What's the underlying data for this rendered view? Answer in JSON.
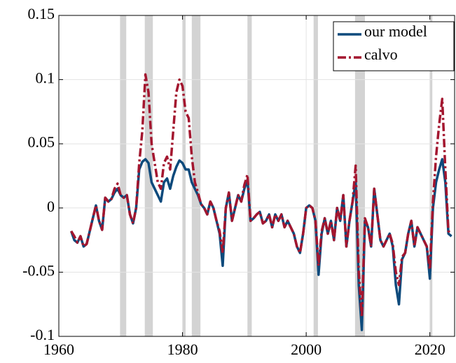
{
  "chart_data": {
    "type": "line",
    "x": [
      1962,
      1962.5,
      1963,
      1963.5,
      1964,
      1964.5,
      1965,
      1965.5,
      1966,
      1966.5,
      1967,
      1967.5,
      1968,
      1968.5,
      1969,
      1969.5,
      1970,
      1970.5,
      1971,
      1971.5,
      1972,
      1972.5,
      1973,
      1973.5,
      1974,
      1974.5,
      1975,
      1975.5,
      1976,
      1976.5,
      1977,
      1977.5,
      1978,
      1978.5,
      1979,
      1979.5,
      1980,
      1980.5,
      1981,
      1981.5,
      1982,
      1982.5,
      1983,
      1983.5,
      1984,
      1984.5,
      1985,
      1985.5,
      1986,
      1986.5,
      1987,
      1987.5,
      1988,
      1988.5,
      1989,
      1989.5,
      1990,
      1990.5,
      1991,
      1991.5,
      1992,
      1992.5,
      1993,
      1993.5,
      1994,
      1994.5,
      1995,
      1995.5,
      1996,
      1996.5,
      1997,
      1997.5,
      1998,
      1998.5,
      1999,
      1999.5,
      2000,
      2000.5,
      2001,
      2001.5,
      2002,
      2002.5,
      2003,
      2003.5,
      2004,
      2004.5,
      2005,
      2005.5,
      2006,
      2006.5,
      2007,
      2007.5,
      2008,
      2008.5,
      2009,
      2009.5,
      2010,
      2010.5,
      2011,
      2011.5,
      2012,
      2012.5,
      2013,
      2013.5,
      2014,
      2014.5,
      2015,
      2015.5,
      2016,
      2016.5,
      2017,
      2017.5,
      2018,
      2018.5,
      2019,
      2019.5,
      2020,
      2020.5,
      2021,
      2021.5,
      2022,
      2022.5,
      2023,
      2023.5
    ],
    "series": [
      {
        "name": "our model",
        "color": "#0d4a7c",
        "dash": "solid",
        "values": [
          -0.018,
          -0.025,
          -0.027,
          -0.022,
          -0.03,
          -0.028,
          -0.018,
          -0.008,
          0.002,
          -0.01,
          -0.017,
          0.008,
          0.005,
          0.007,
          0.012,
          0.015,
          0.01,
          0.008,
          0.01,
          -0.005,
          -0.012,
          0.0,
          0.03,
          0.036,
          0.038,
          0.035,
          0.02,
          0.015,
          0.01,
          0.005,
          0.02,
          0.023,
          0.015,
          0.025,
          0.032,
          0.037,
          0.035,
          0.03,
          0.03,
          0.02,
          0.015,
          0.01,
          0.003,
          0.0,
          -0.005,
          0.005,
          0.0,
          -0.01,
          -0.02,
          -0.045,
          0.0,
          0.012,
          -0.01,
          0.0,
          0.01,
          0.005,
          0.015,
          0.022,
          -0.01,
          -0.008,
          -0.005,
          -0.003,
          -0.012,
          -0.01,
          -0.005,
          -0.015,
          -0.005,
          -0.01,
          -0.005,
          -0.015,
          -0.01,
          -0.015,
          -0.02,
          -0.03,
          -0.035,
          -0.02,
          0.0,
          0.002,
          0.0,
          -0.01,
          -0.052,
          -0.02,
          -0.008,
          -0.02,
          -0.01,
          -0.025,
          0.0,
          -0.01,
          0.01,
          -0.03,
          -0.01,
          0.005,
          0.02,
          -0.06,
          -0.095,
          -0.01,
          -0.015,
          -0.03,
          0.015,
          -0.005,
          -0.025,
          -0.03,
          -0.025,
          -0.02,
          -0.03,
          -0.06,
          -0.075,
          -0.04,
          -0.035,
          -0.02,
          -0.01,
          -0.03,
          -0.015,
          -0.02,
          -0.025,
          -0.03,
          -0.055,
          0.0,
          0.02,
          0.03,
          0.038,
          0.02,
          -0.02,
          -0.022
        ]
      },
      {
        "name": "calvo",
        "color": "#a3162f",
        "dash": "dashdot",
        "values": [
          -0.018,
          -0.022,
          -0.027,
          -0.022,
          -0.03,
          -0.028,
          -0.018,
          -0.008,
          0.002,
          -0.01,
          -0.017,
          0.008,
          0.005,
          0.007,
          0.015,
          0.019,
          0.01,
          0.008,
          0.01,
          -0.005,
          -0.012,
          0.0,
          0.035,
          0.06,
          0.104,
          0.09,
          0.05,
          0.035,
          0.02,
          0.015,
          0.035,
          0.04,
          0.03,
          0.06,
          0.09,
          0.1,
          0.095,
          0.075,
          0.07,
          0.04,
          0.02,
          0.012,
          0.003,
          0.0,
          -0.005,
          0.005,
          0.0,
          -0.01,
          -0.018,
          -0.035,
          0.0,
          0.012,
          -0.01,
          0.0,
          0.01,
          0.005,
          0.018,
          0.026,
          -0.01,
          -0.008,
          -0.005,
          -0.003,
          -0.012,
          -0.01,
          -0.005,
          -0.015,
          -0.005,
          -0.01,
          -0.005,
          -0.015,
          -0.01,
          -0.015,
          -0.02,
          -0.03,
          -0.035,
          -0.02,
          0.0,
          0.002,
          0.0,
          -0.01,
          -0.045,
          -0.018,
          -0.008,
          -0.02,
          -0.01,
          -0.025,
          0.0,
          -0.01,
          0.01,
          -0.03,
          -0.01,
          0.005,
          0.033,
          -0.05,
          -0.085,
          -0.008,
          -0.015,
          -0.03,
          0.015,
          -0.005,
          -0.025,
          -0.03,
          -0.025,
          -0.02,
          -0.028,
          -0.05,
          -0.06,
          -0.038,
          -0.035,
          -0.02,
          -0.01,
          -0.03,
          -0.015,
          -0.02,
          -0.025,
          -0.03,
          -0.048,
          0.005,
          0.04,
          0.065,
          0.085,
          0.03,
          -0.018,
          -0.02
        ]
      }
    ],
    "recessions": [
      [
        1969.9,
        1970.9
      ],
      [
        1973.9,
        1975.2
      ],
      [
        1980.0,
        1980.5
      ],
      [
        1981.5,
        1982.9
      ],
      [
        1990.5,
        1991.2
      ],
      [
        2001.2,
        2001.9
      ],
      [
        2007.9,
        2009.5
      ],
      [
        2020.0,
        2020.4
      ]
    ],
    "recession_color": "#d3d3d3",
    "xlim": [
      1960,
      2024
    ],
    "xticks": [
      1960,
      1980,
      2000,
      2020
    ],
    "ylim": [
      -0.1,
      0.15
    ],
    "yticks": [
      -0.1,
      -0.05,
      0,
      0.05,
      0.1,
      0.15
    ],
    "grid": true,
    "legend": "upper right"
  }
}
